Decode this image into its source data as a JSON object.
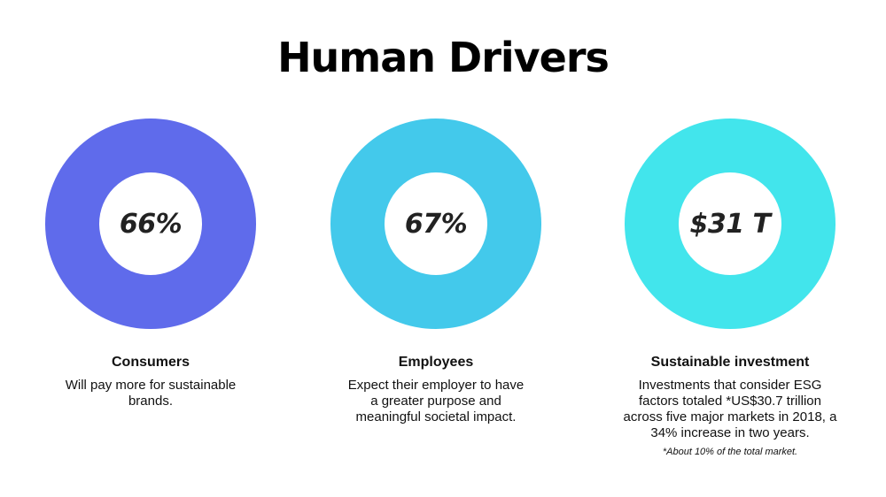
{
  "title": "Human Drivers",
  "colors": {
    "consumers": "#5F6BEB",
    "employees": "#43C9EB",
    "investment": "#42E5EC"
  },
  "cards": [
    {
      "stat": "66%",
      "heading": "Consumers",
      "desc_lines": [
        "Will pay more for sustainable",
        "brands."
      ]
    },
    {
      "stat": "67%",
      "heading": "Employees",
      "desc_lines": [
        "Expect their employer to have",
        "a greater purpose and",
        "meaningful societal impact."
      ]
    },
    {
      "stat": "$31 T",
      "heading": "Sustainable investment",
      "desc_lines": [
        "Investments that consider ESG",
        "factors totaled *US$30.7 trillion",
        "across five major markets in 2018, a",
        "34% increase in two years."
      ],
      "footnote": "*About 10% of the total market."
    }
  ]
}
